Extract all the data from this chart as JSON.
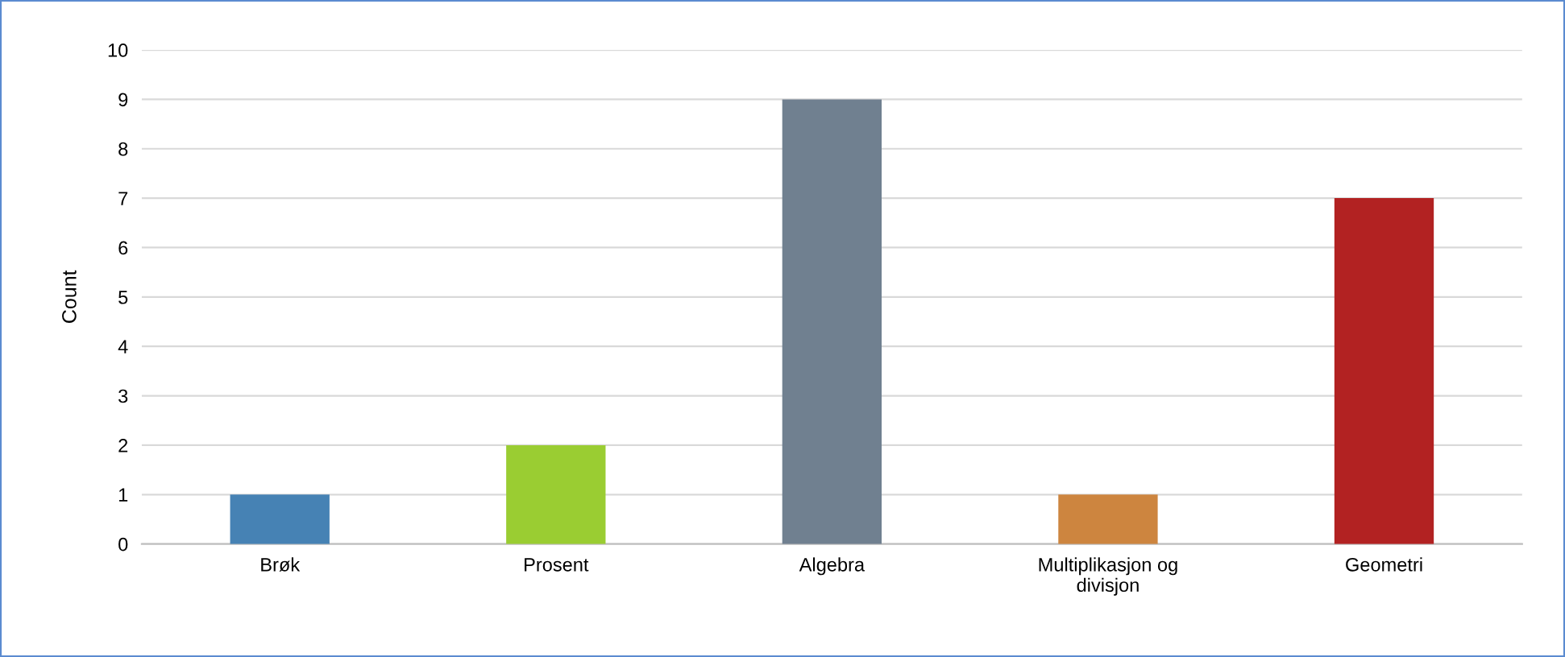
{
  "chart_data": {
    "type": "bar",
    "ylabel": "Count",
    "categories": [
      "Brøk",
      "Prosent",
      "Algebra",
      "Multiplikasjon og divisjon",
      "Geometri"
    ],
    "values": [
      1,
      2,
      9,
      1,
      7
    ],
    "colors": [
      "#4682b4",
      "#9acd32",
      "#708090",
      "#cd853f",
      "#b22222"
    ],
    "ylim": [
      0,
      10
    ],
    "yticks": [
      0,
      1,
      2,
      3,
      4,
      5,
      6,
      7,
      8,
      9,
      10
    ],
    "grid": "y"
  }
}
